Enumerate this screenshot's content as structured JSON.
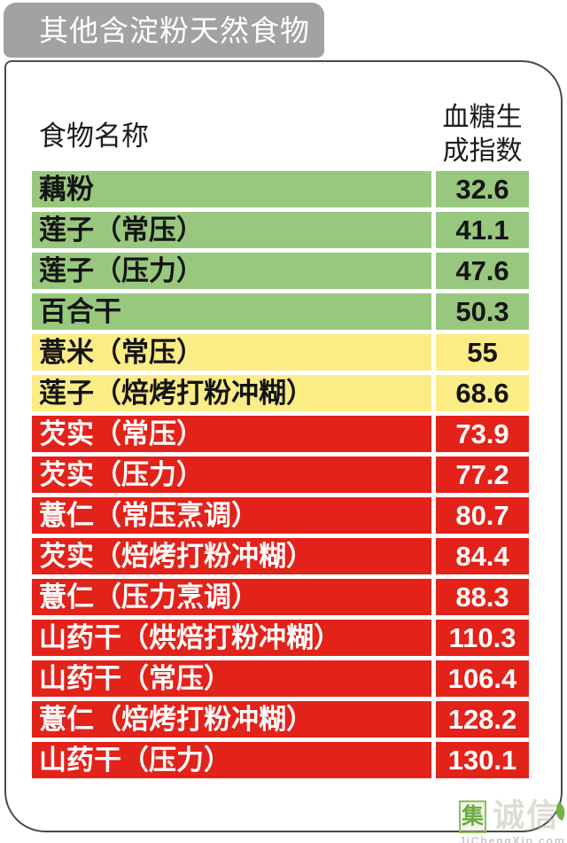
{
  "badge": {
    "label": "其他含淀粉天然食物"
  },
  "table": {
    "header": {
      "food_name": "食物名称",
      "gi_line1": "血糖生",
      "gi_line2": "成指数",
      "gi_full": "血糖生成指数"
    },
    "rows": [
      {
        "name": "藕粉",
        "value": "32.6",
        "level": "green"
      },
      {
        "name": "莲子（常压）",
        "value": "41.1",
        "level": "green"
      },
      {
        "name": "莲子（压力）",
        "value": "47.6",
        "level": "green"
      },
      {
        "name": "百合干",
        "value": "50.3",
        "level": "green"
      },
      {
        "name": "薏米（常压）",
        "value": "55",
        "level": "yellow"
      },
      {
        "name": "莲子（焙烤打粉冲糊）",
        "value": "68.6",
        "level": "yellow"
      },
      {
        "name": "芡实（常压）",
        "value": "73.9",
        "level": "red"
      },
      {
        "name": "芡实（压力）",
        "value": "77.2",
        "level": "red"
      },
      {
        "name": "薏仁（常压烹调）",
        "value": "80.7",
        "level": "red"
      },
      {
        "name": "芡实（焙烤打粉冲糊）",
        "value": "84.4",
        "level": "red"
      },
      {
        "name": "薏仁（压力烹调）",
        "value": "88.3",
        "level": "red"
      },
      {
        "name": "山药干（烘焙打粉冲糊）",
        "value": "110.3",
        "level": "red"
      },
      {
        "name": "山药干（常压）",
        "value": "106.4",
        "level": "red"
      },
      {
        "name": "薏仁（焙烤打粉冲糊）",
        "value": "128.2",
        "level": "red"
      },
      {
        "name": "山药干（压力）",
        "value": "130.1",
        "level": "red"
      }
    ]
  },
  "colors": {
    "badge_bg": "#A2A2A2",
    "green": "#98C87D",
    "yellow": "#FCEC85",
    "red": "#E3221A"
  },
  "watermark": {
    "boxed_char": "集",
    "faint_text": "诚信",
    "site": "JiChengXin.com"
  },
  "chart_data": {
    "type": "table",
    "title": "其他含淀粉天然食物",
    "columns": [
      "食物名称",
      "血糖生成指数"
    ],
    "rows": [
      [
        "藕粉",
        32.6
      ],
      [
        "莲子（常压）",
        41.1
      ],
      [
        "莲子（压力）",
        47.6
      ],
      [
        "百合干",
        50.3
      ],
      [
        "薏米（常压）",
        55
      ],
      [
        "莲子（焙烤打粉冲糊）",
        68.6
      ],
      [
        "芡实（常压）",
        73.9
      ],
      [
        "芡实（压力）",
        77.2
      ],
      [
        "薏仁（常压烹调）",
        80.7
      ],
      [
        "芡实（焙烤打粉冲糊）",
        84.4
      ],
      [
        "薏仁（压力烹调）",
        88.3
      ],
      [
        "山药干（烘焙打粉冲糊）",
        110.3
      ],
      [
        "山药干（常压）",
        106.4
      ],
      [
        "薏仁（焙烤打粉冲糊）",
        128.2
      ],
      [
        "山药干（压力）",
        130.1
      ]
    ],
    "row_colors": [
      "green",
      "green",
      "green",
      "green",
      "yellow",
      "yellow",
      "red",
      "red",
      "red",
      "red",
      "red",
      "red",
      "red",
      "red",
      "red"
    ],
    "legend_hint": "green=low GI, yellow=medium GI, red=high GI"
  }
}
